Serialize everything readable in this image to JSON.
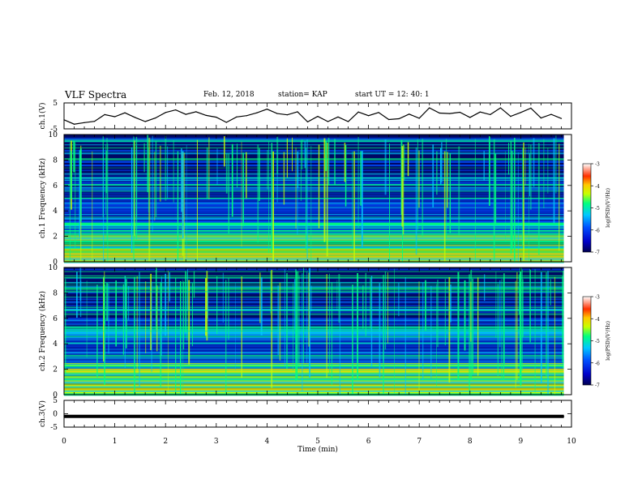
{
  "header": {
    "title": "VLF Spectra",
    "date": "Feb. 12, 2018",
    "station": "station= KAP",
    "start": "start  UT =   12: 40: 1"
  },
  "chart_data": [
    {
      "type": "line",
      "panel": "ch1-timeseries",
      "ylabel": "ch.1(V)",
      "ylim": [
        -5,
        5
      ],
      "yticks": [
        5,
        -5
      ],
      "x": [
        0.0,
        0.2,
        0.4,
        0.6,
        0.8,
        1.0,
        1.2,
        1.4,
        1.6,
        1.8,
        2.0,
        2.2,
        2.4,
        2.6,
        2.8,
        3.0,
        3.2,
        3.4,
        3.6,
        3.8,
        4.0,
        4.2,
        4.4,
        4.6,
        4.8,
        5.0,
        5.2,
        5.4,
        5.6,
        5.8,
        6.0,
        6.2,
        6.4,
        6.6,
        6.8,
        7.0,
        7.2,
        7.4,
        7.6,
        7.8,
        8.0,
        8.2,
        8.4,
        8.6,
        8.8,
        9.0,
        9.2,
        9.4,
        9.6,
        9.8
      ],
      "values": [
        -1.5,
        -3.2,
        -2.6,
        -2.1,
        0.5,
        -0.3,
        1.2,
        -0.6,
        -2.2,
        -0.8,
        1.3,
        2.3,
        0.6,
        1.6,
        0.2,
        -0.5,
        -2.5,
        -0.4,
        0.1,
        1.2,
        2.6,
        0.9,
        0.4,
        1.6,
        -2.3,
        -0.2,
        -2.2,
        -0.4,
        -2.2,
        1.5,
        0.1,
        1.3,
        -1.4,
        -1.1,
        0.7,
        -0.9,
        3.1,
        1.1,
        0.9,
        1.4,
        -0.6,
        1.5,
        0.5,
        3.1,
        -0.2,
        1.3,
        3.0,
        -0.8,
        0.6,
        -1.0
      ]
    },
    {
      "type": "heatmap",
      "panel": "ch1-spectrogram",
      "ylabel": "ch.1  Frequency  (kHz)",
      "ylim": [
        0,
        10
      ],
      "yticks": [
        0,
        2,
        4,
        6,
        8,
        10
      ],
      "colorbar": {
        "label": "log(PSD)(V²/Hz)",
        "range": [
          -7,
          -3
        ],
        "ticks": [
          -3,
          -4,
          -5,
          -6,
          -7
        ]
      }
    },
    {
      "type": "heatmap",
      "panel": "ch2-spectrogram",
      "ylabel": "ch.2  Frequency  (kHz)",
      "ylim": [
        0,
        10
      ],
      "yticks": [
        0,
        2,
        4,
        6,
        8,
        10
      ],
      "colorbar": {
        "label": "log(PSD)(V²/Hz)",
        "range": [
          -7,
          -3
        ],
        "ticks": [
          -3,
          -4,
          -5,
          -6,
          -7
        ]
      }
    },
    {
      "type": "line",
      "panel": "ch3-timeseries",
      "ylabel": "ch.3(V)",
      "ylim": [
        -5,
        5
      ],
      "yticks": [
        5,
        0,
        -5
      ],
      "x": [
        0.0,
        9.85
      ],
      "values": [
        -1.0,
        -1.0
      ]
    }
  ],
  "axes": {
    "xlabel": "Time  (min)",
    "xlim": [
      0,
      10
    ],
    "xticks": [
      0,
      1,
      2,
      3,
      4,
      5,
      6,
      7,
      8,
      9,
      10
    ]
  },
  "colors": {
    "trace": "#000000",
    "colormap": [
      "#000050",
      "#0000c8",
      "#0050ff",
      "#00c8ff",
      "#00ff80",
      "#c8ff00",
      "#ffc800",
      "#ff3000",
      "#ffffff"
    ]
  }
}
